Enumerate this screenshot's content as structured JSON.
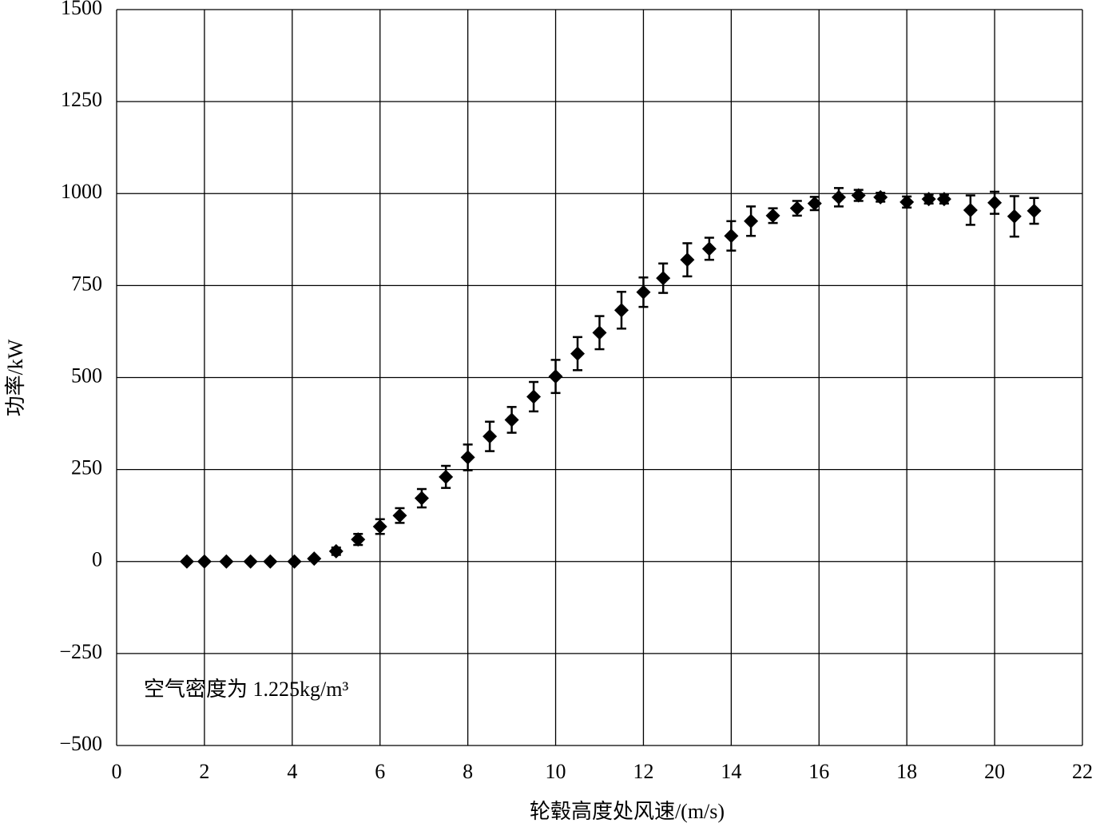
{
  "chart_data": {
    "type": "scatter",
    "x_label": "轮毂高度处风速/(m/s)",
    "y_label": "功率/kW",
    "annotation": "空气密度为 1.225kg/m³",
    "xlim": [
      0,
      22
    ],
    "ylim": [
      -500,
      1500
    ],
    "xticks": [
      0,
      2,
      4,
      6,
      8,
      10,
      12,
      14,
      16,
      18,
      20,
      22
    ],
    "yticks": [
      {
        "value": -500,
        "label": "−500"
      },
      {
        "value": -250,
        "label": "−250"
      },
      0,
      250,
      500,
      750,
      1000,
      1250,
      1500
    ],
    "grid": true,
    "series": [
      {
        "color": "#000000",
        "x": [
          1.6,
          2.0,
          2.5,
          3.05,
          3.5,
          4.05,
          4.5,
          5.0,
          5.5,
          6.0,
          6.45,
          6.95,
          7.5,
          8.0,
          8.5,
          9.0,
          9.5,
          10.0,
          10.5,
          11.0,
          11.5,
          12.0,
          12.45,
          13.0,
          13.5,
          14.0,
          14.45,
          14.95,
          15.5,
          15.9,
          16.45,
          16.9,
          17.4,
          18.0,
          18.5,
          18.85,
          19.45,
          20.0,
          20.45,
          20.9
        ],
        "values": [
          0,
          0,
          0,
          0,
          0,
          0,
          8,
          28,
          60,
          95,
          125,
          172,
          230,
          283,
          340,
          385,
          448,
          503,
          565,
          622,
          683,
          732,
          770,
          820,
          850,
          885,
          925,
          940,
          960,
          973,
          990,
          995,
          990,
          977,
          985,
          985,
          955,
          975,
          938,
          953
        ],
        "errors": [
          null,
          null,
          null,
          null,
          null,
          null,
          null,
          10,
          15,
          20,
          20,
          25,
          30,
          35,
          40,
          35,
          40,
          45,
          45,
          45,
          50,
          40,
          40,
          45,
          30,
          40,
          40,
          20,
          20,
          18,
          25,
          15,
          12,
          15,
          12,
          12,
          40,
          30,
          55,
          35
        ]
      }
    ]
  }
}
